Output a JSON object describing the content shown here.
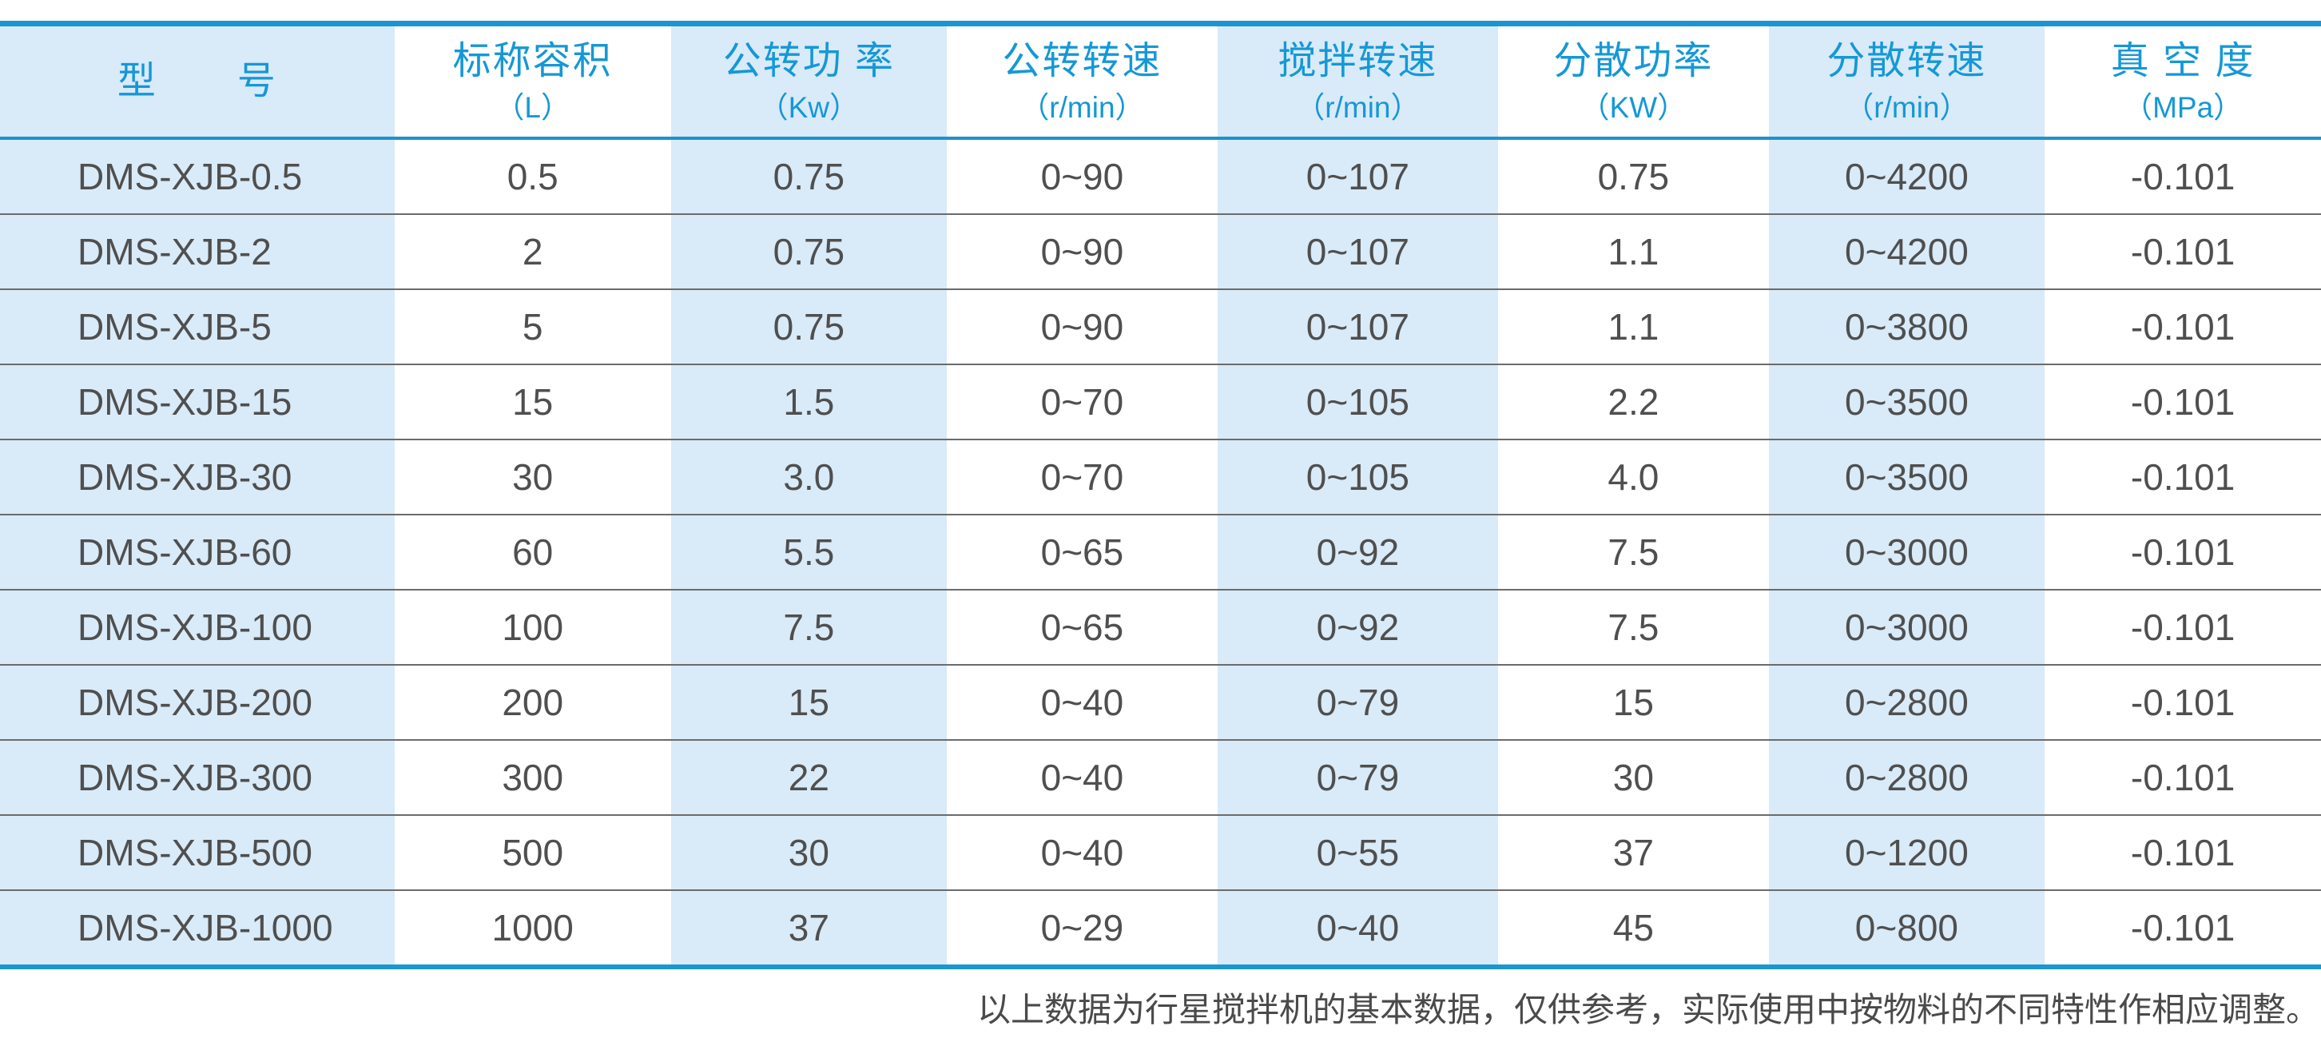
{
  "colors": {
    "accent_border_blue": "#1a96d2",
    "header_text_blue": "#1598d6",
    "shaded_column_bg": "#d9eaf8",
    "plain_column_bg": "#ffffff",
    "body_text_gray": "#4f4f4f",
    "row_divider_gray": "#6b6b6b"
  },
  "chart_data": {
    "type": "table",
    "columns": [
      {
        "title": "型　　号",
        "unit": "",
        "shaded": true
      },
      {
        "title": "标称容积",
        "unit": "（L）",
        "shaded": false
      },
      {
        "title": "公转功 率",
        "unit": "（Kw）",
        "shaded": true
      },
      {
        "title": "公转转速",
        "unit": "（r/min）",
        "shaded": false
      },
      {
        "title": "搅拌转速",
        "unit": "（r/min）",
        "shaded": true
      },
      {
        "title": "分散功率",
        "unit": "（KW）",
        "shaded": false
      },
      {
        "title": "分散转速",
        "unit": "（r/min）",
        "shaded": true
      },
      {
        "title": "真 空 度",
        "unit": "（MPa）",
        "shaded": false
      }
    ],
    "rows": [
      [
        "DMS-XJB-0.5",
        "0.5",
        "0.75",
        "0~90",
        "0~107",
        "0.75",
        "0~4200",
        "-0.101"
      ],
      [
        "DMS-XJB-2",
        "2",
        "0.75",
        "0~90",
        "0~107",
        "1.1",
        "0~4200",
        "-0.101"
      ],
      [
        "DMS-XJB-5",
        "5",
        "0.75",
        "0~90",
        "0~107",
        "1.1",
        "0~3800",
        "-0.101"
      ],
      [
        "DMS-XJB-15",
        "15",
        "1.5",
        "0~70",
        "0~105",
        "2.2",
        "0~3500",
        "-0.101"
      ],
      [
        "DMS-XJB-30",
        "30",
        "3.0",
        "0~70",
        "0~105",
        "4.0",
        "0~3500",
        "-0.101"
      ],
      [
        "DMS-XJB-60",
        "60",
        "5.5",
        "0~65",
        "0~92",
        "7.5",
        "0~3000",
        "-0.101"
      ],
      [
        "DMS-XJB-100",
        "100",
        "7.5",
        "0~65",
        "0~92",
        "7.5",
        "0~3000",
        "-0.101"
      ],
      [
        "DMS-XJB-200",
        "200",
        "15",
        "0~40",
        "0~79",
        "15",
        "0~2800",
        "-0.101"
      ],
      [
        "DMS-XJB-300",
        "300",
        "22",
        "0~40",
        "0~79",
        "30",
        "0~2800",
        "-0.101"
      ],
      [
        "DMS-XJB-500",
        "500",
        "30",
        "0~40",
        "0~55",
        "37",
        "0~1200",
        "-0.101"
      ],
      [
        "DMS-XJB-1000",
        "1000",
        "37",
        "0~29",
        "0~40",
        "45",
        "0~800",
        "-0.101"
      ]
    ]
  },
  "footer": {
    "note": "以上数据为行星搅拌机的基本数据，仅供参考，实际使用中按物料的不同特性作相应调整。"
  }
}
